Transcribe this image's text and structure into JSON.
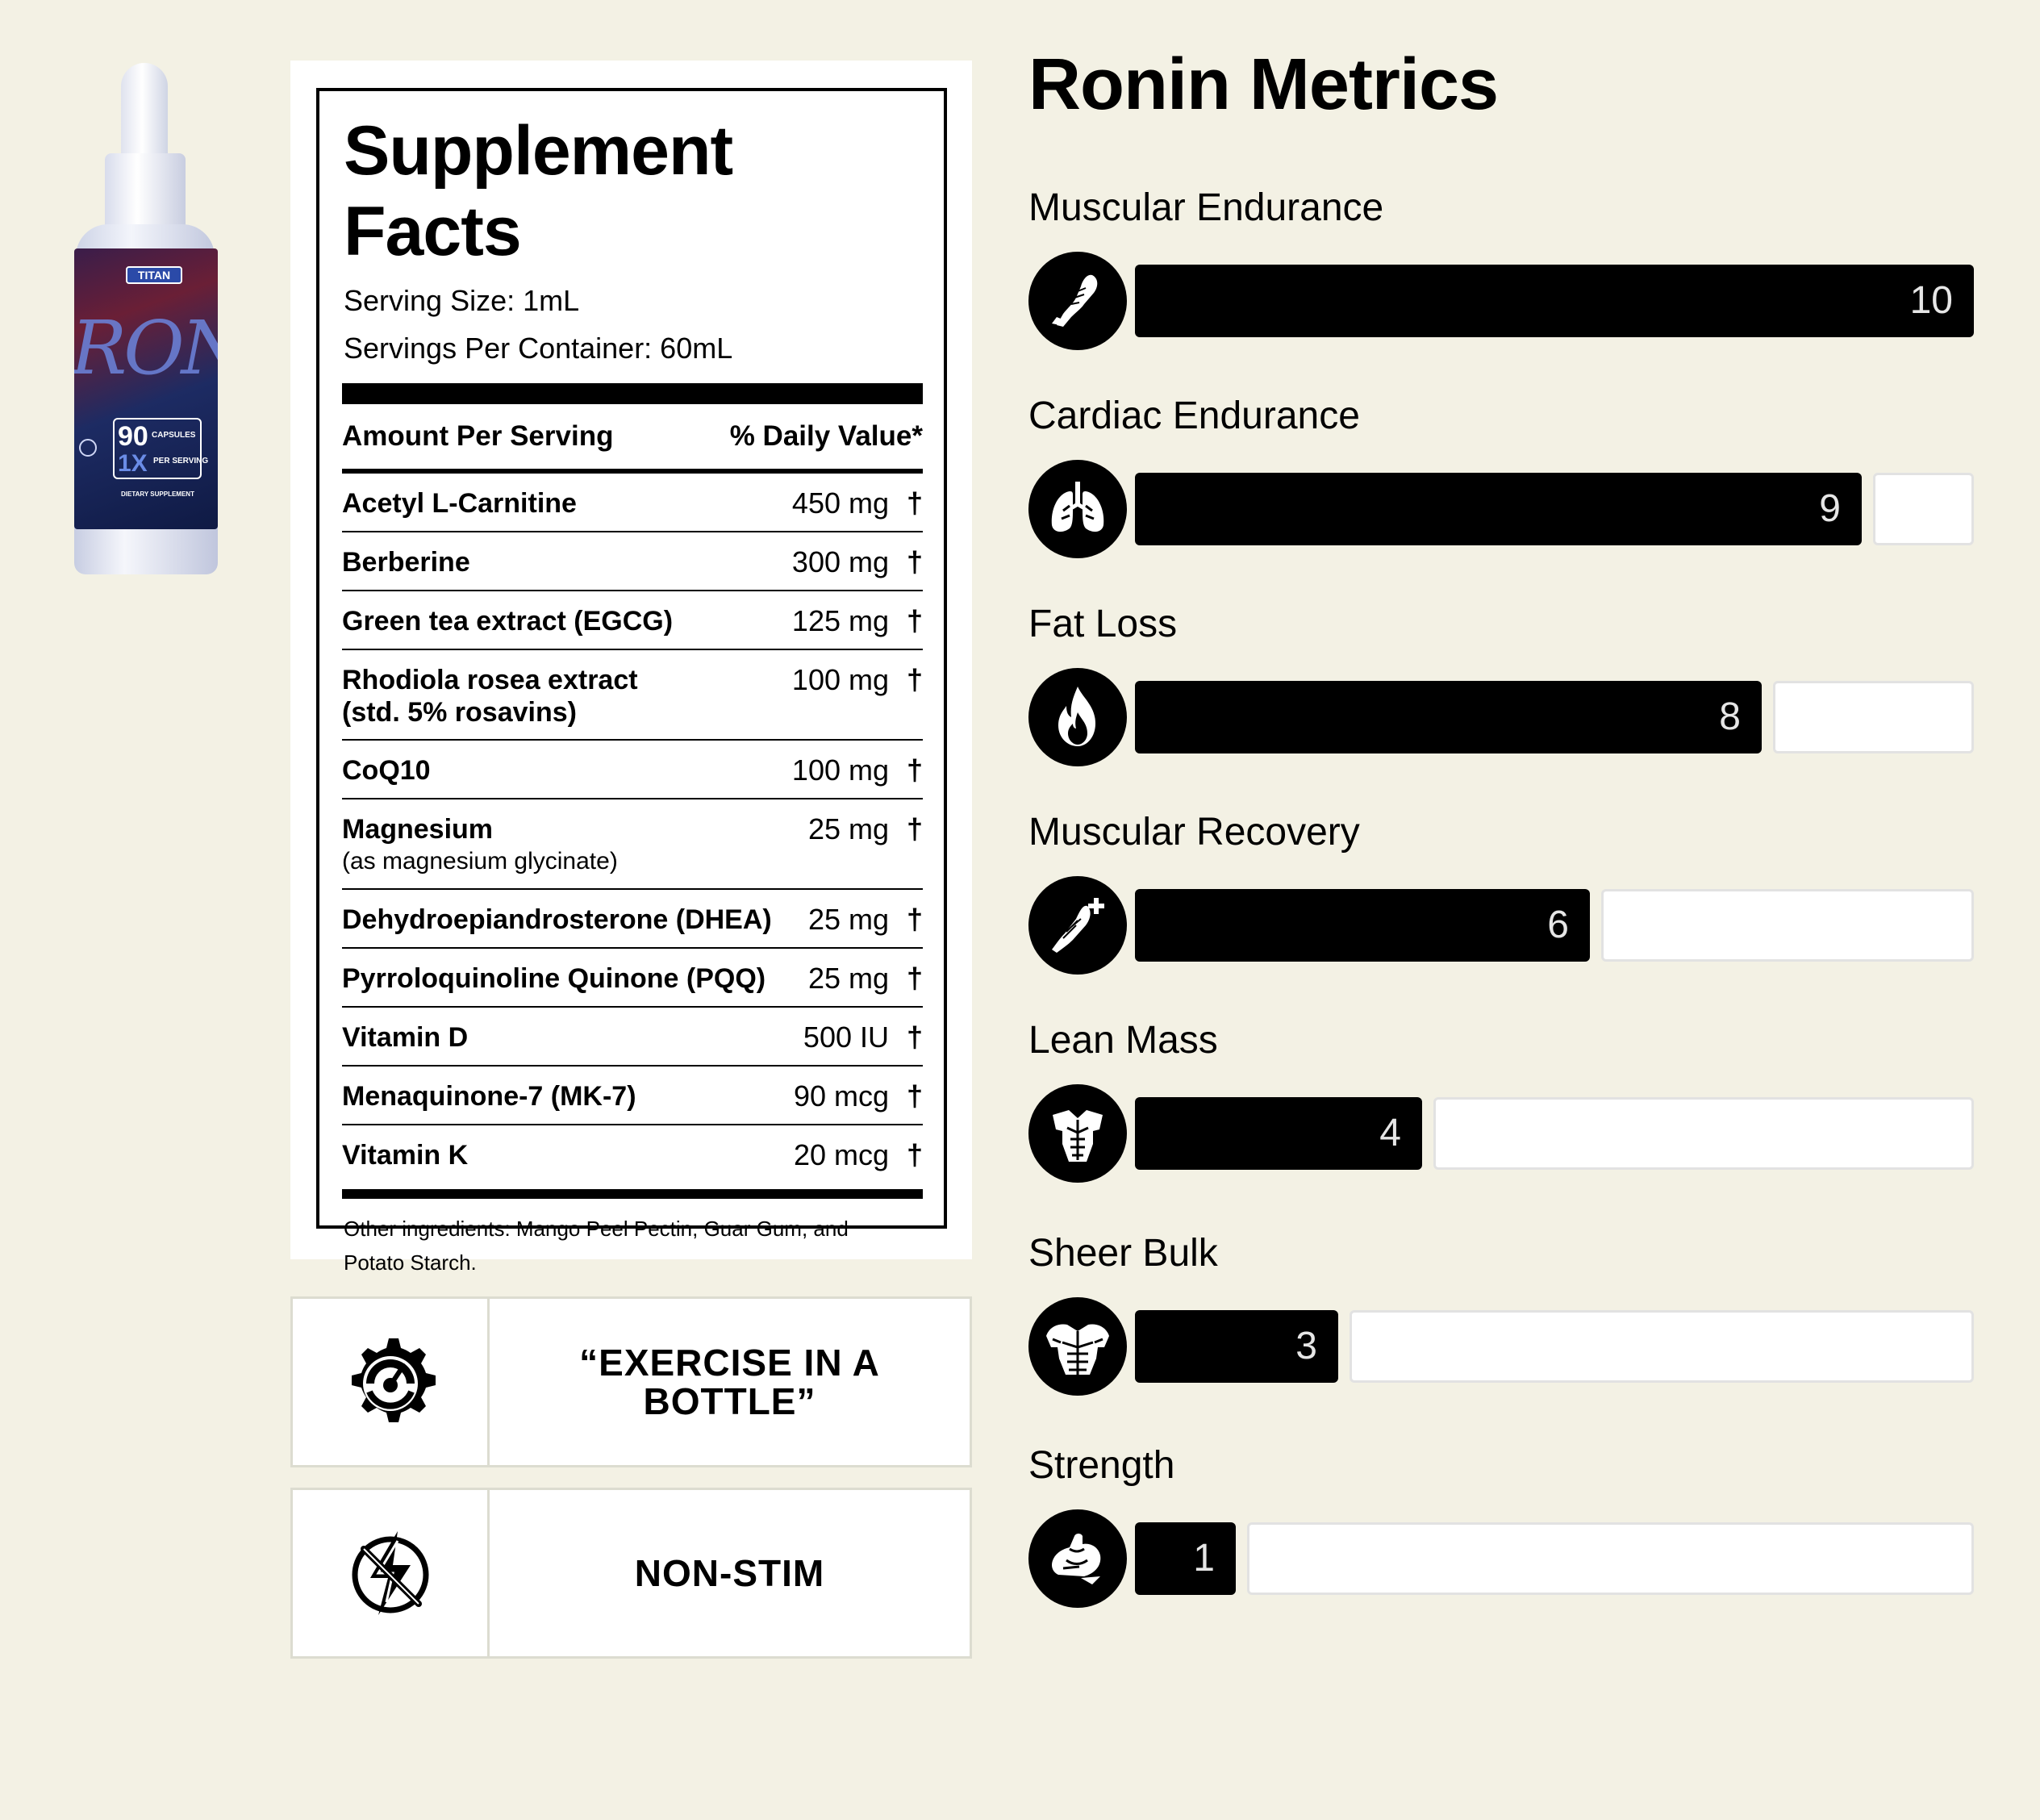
{
  "product": {
    "brand": "TITAN",
    "name": "RONIN",
    "capsule_count": "90",
    "capsule_label": "CAPSULES",
    "per_serving_count": "1X",
    "per_serving_label": "PER SERVING",
    "type": "DIETARY SUPPLEMENT"
  },
  "facts": {
    "title": "Supplement Facts",
    "serving_size": "Serving Size: 1mL",
    "servings_per_container": "Servings Per Container: 60mL",
    "amount_header": "Amount Per Serving",
    "dv_header": "% Daily Value*",
    "rows": [
      {
        "name": "Acetyl L-Carnitine",
        "sub": "",
        "amount": "450 mg",
        "dv": "†"
      },
      {
        "name": "Berberine",
        "sub": "",
        "amount": "300 mg",
        "dv": "†"
      },
      {
        "name": "Green tea extract (EGCG)",
        "sub": "",
        "amount": "125 mg",
        "dv": "†"
      },
      {
        "name": "Rhodiola rosea extract",
        "sub": "(std. 5% rosavins)",
        "amount": "100 mg",
        "dv": "†"
      },
      {
        "name": "CoQ10",
        "sub": "",
        "amount": "100 mg",
        "dv": "†"
      },
      {
        "name": "Magnesium",
        "sub": "(as magnesium glycinate)",
        "amount": "25 mg",
        "dv": "†"
      },
      {
        "name": "Dehydroepiandrosterone (DHEA)",
        "sub": "",
        "amount": "25 mg",
        "dv": "†"
      },
      {
        "name": "Pyrroloquinoline Quinone (PQQ)",
        "sub": "",
        "amount": "25 mg",
        "dv": "†"
      },
      {
        "name": "Vitamin D",
        "sub": "",
        "amount": "500 IU",
        "dv": "†"
      },
      {
        "name": "Menaquinone-7 (MK-7)",
        "sub": "",
        "amount": "90 mcg",
        "dv": "†"
      },
      {
        "name": "Vitamin K",
        "sub": "",
        "amount": "20 mcg",
        "dv": "†"
      }
    ],
    "other_ingredients": "Other ingredients: Mango Peel Pectin, Guar Gum, and Potato Starch."
  },
  "features": [
    {
      "icon": "gear-gauge-icon",
      "label": "“EXERCISE IN A BOTTLE”"
    },
    {
      "icon": "no-lightning-icon",
      "label": "NON-STIM"
    }
  ],
  "metrics": {
    "title": "Ronin Metrics",
    "scale_max": 10,
    "items": [
      {
        "label": "Muscular Endurance",
        "value": 10,
        "icon": "running-leg-icon"
      },
      {
        "label": "Cardiac Endurance",
        "value": 9,
        "icon": "lungs-icon"
      },
      {
        "label": "Fat Loss",
        "value": 8,
        "icon": "flame-icon"
      },
      {
        "label": "Muscular Recovery",
        "value": 6,
        "icon": "muscle-plus-icon"
      },
      {
        "label": "Lean Mass",
        "value": 4,
        "icon": "torso-icon"
      },
      {
        "label": "Sheer Bulk",
        "value": 3,
        "icon": "bulky-torso-icon"
      },
      {
        "label": "Strength",
        "value": 1,
        "icon": "flexed-arm-icon"
      }
    ]
  },
  "colors": {
    "page_background": "#f3f1e4",
    "bar_fill": "#000000",
    "bar_empty": "#ffffff",
    "bar_value_text": "#e6e6e6"
  }
}
